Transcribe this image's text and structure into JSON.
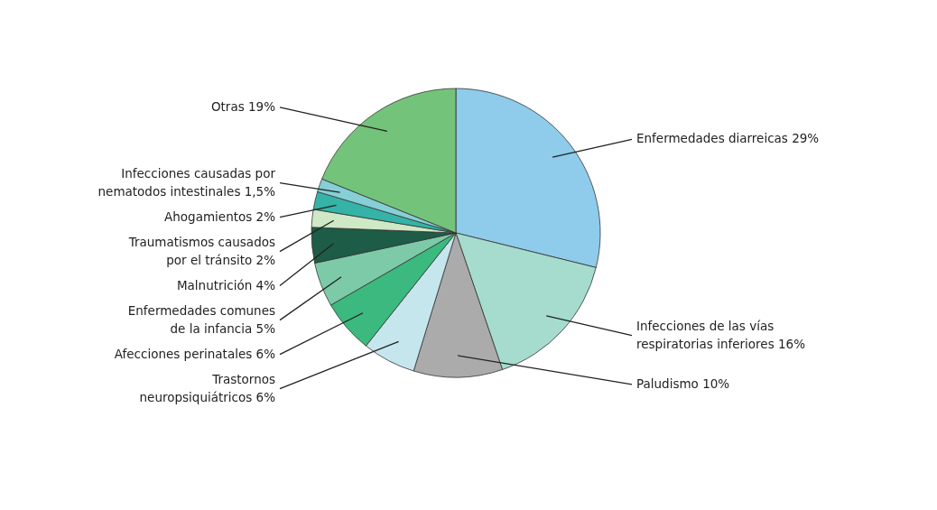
{
  "chart_data": {
    "type": "pie",
    "categories": [
      "Enfermedades diarreicas 29%",
      "Infecciones de las vías respiratorias inferiores 16%",
      "Paludismo 10%",
      "Trastornos neuropsiquiátricos 6%",
      "Afecciones perinatales 6%",
      "Enfermedades comunes de la infancia 5%",
      "Malnutrición 4%",
      "Traumatismos causados por el tránsito 2%",
      "Ahogamientos 2%",
      "Infecciones causadas por nematodos intestinales 1,5%",
      "Otras 19%"
    ],
    "values": [
      29,
      16,
      10,
      6,
      6,
      5,
      4,
      2,
      2,
      1.5,
      19
    ],
    "colors": [
      "#8fcbeb",
      "#a6dccd",
      "#ababab",
      "#c6e6ee",
      "#3bb97e",
      "#7ccaa8",
      "#1d5c47",
      "#cfe8c6",
      "#34b3a6",
      "#86cfd6",
      "#74c37a"
    ]
  }
}
